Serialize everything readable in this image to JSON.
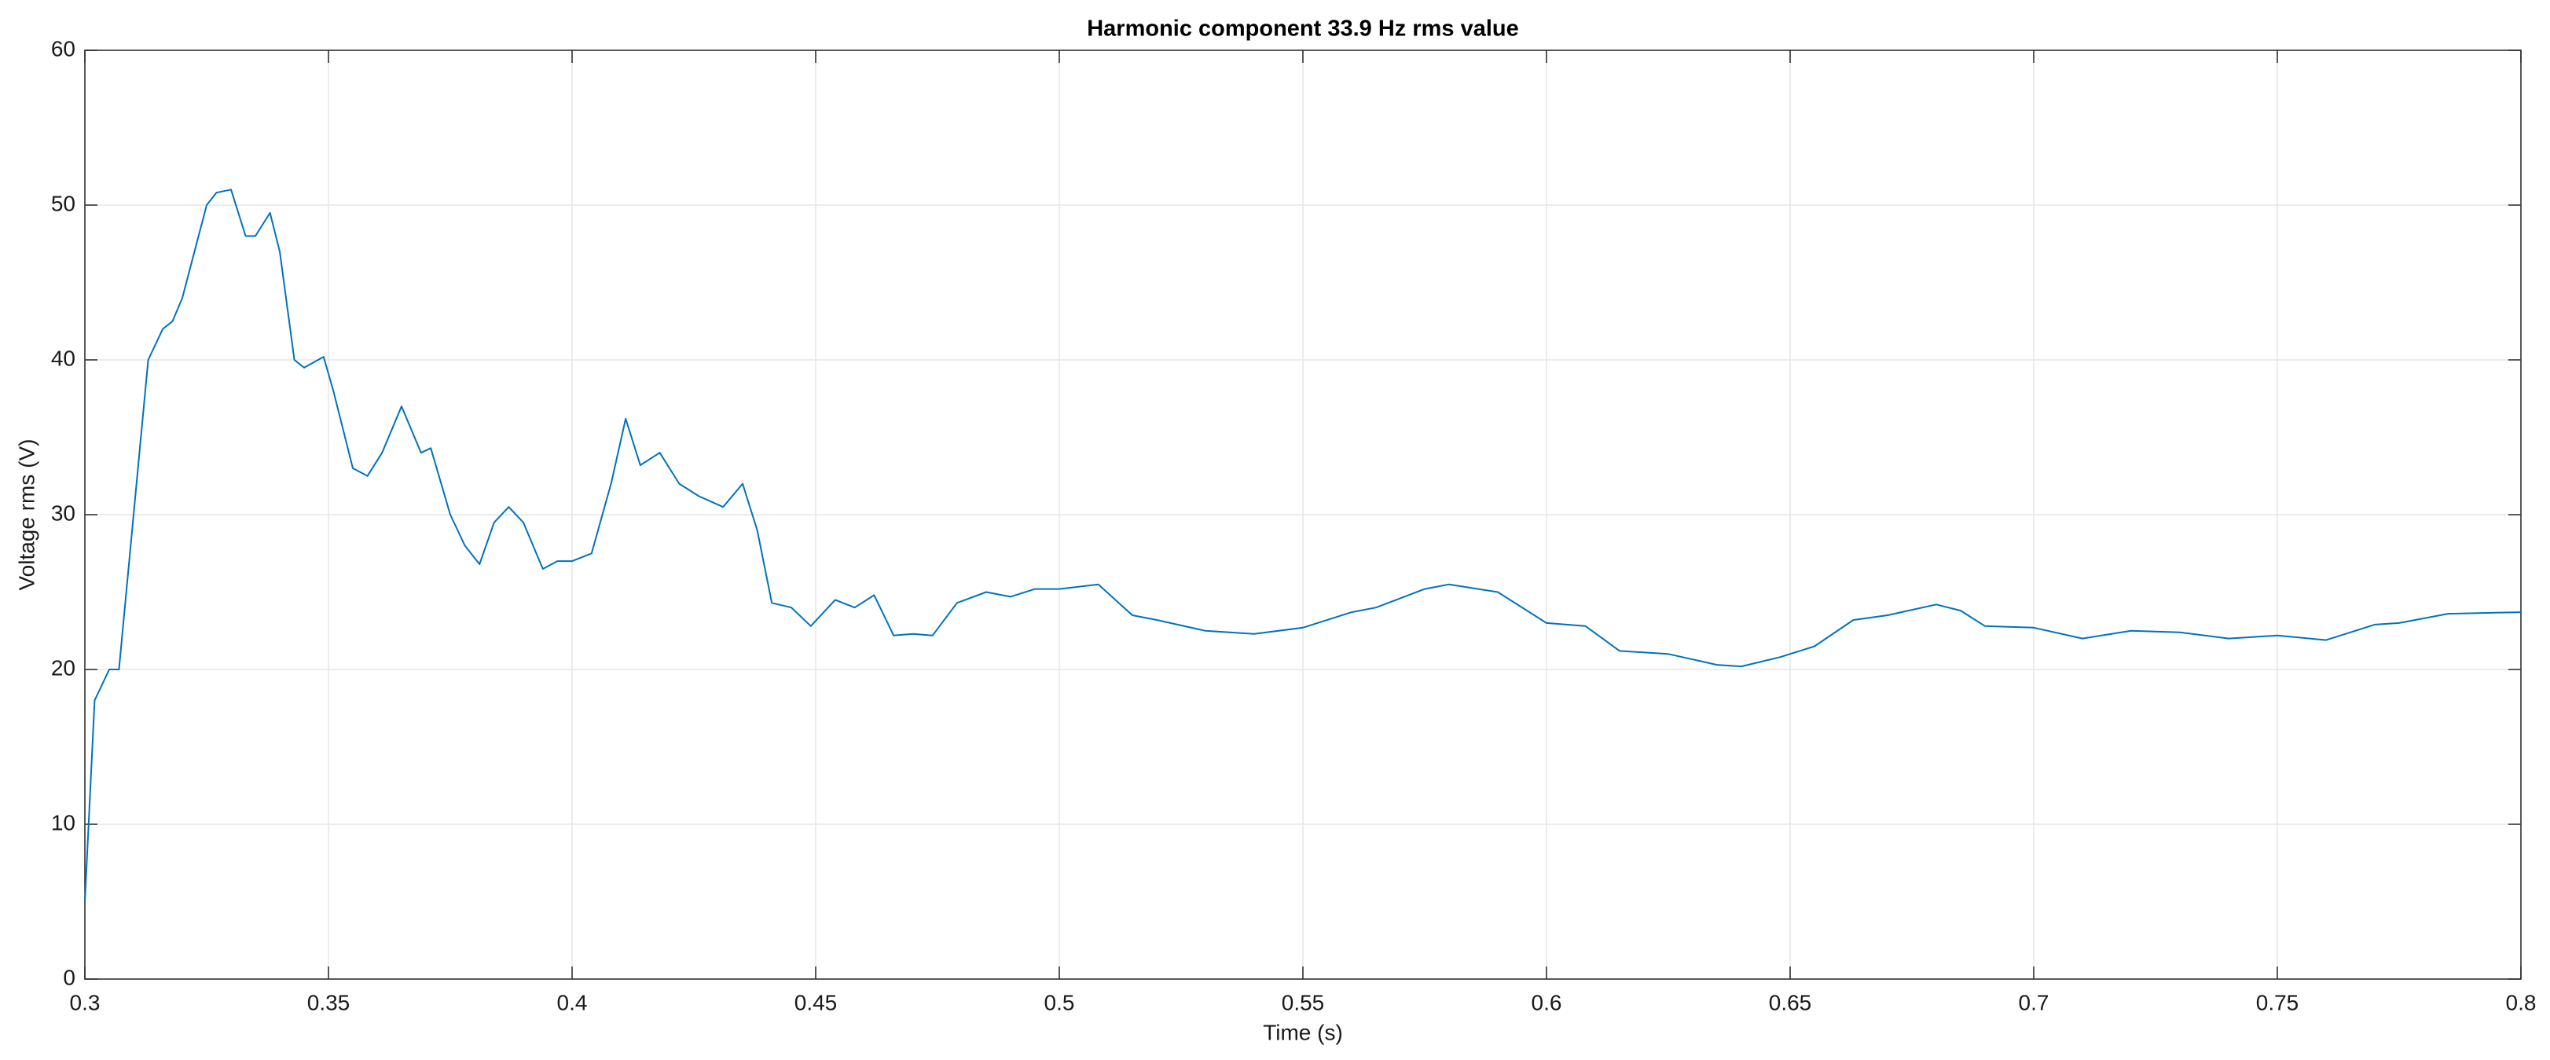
{
  "chart_data": {
    "type": "line",
    "title": "Harmonic component 33.9 Hz rms value",
    "xlabel": "Time (s)",
    "ylabel": "Voltage rms (V)",
    "x": [
      0.3,
      0.302,
      0.305,
      0.307,
      0.31,
      0.313,
      0.316,
      0.318,
      0.32,
      0.325,
      0.327,
      0.33,
      0.333,
      0.335,
      0.338,
      0.34,
      0.343,
      0.345,
      0.349,
      0.351,
      0.355,
      0.358,
      0.361,
      0.365,
      0.369,
      0.371,
      0.375,
      0.378,
      0.381,
      0.384,
      0.387,
      0.39,
      0.394,
      0.397,
      0.4,
      0.404,
      0.408,
      0.411,
      0.414,
      0.418,
      0.422,
      0.426,
      0.431,
      0.435,
      0.438,
      0.441,
      0.445,
      0.449,
      0.454,
      0.458,
      0.462,
      0.466,
      0.47,
      0.474,
      0.479,
      0.485,
      0.49,
      0.495,
      0.5,
      0.508,
      0.515,
      0.52,
      0.53,
      0.54,
      0.55,
      0.56,
      0.565,
      0.575,
      0.58,
      0.59,
      0.6,
      0.608,
      0.615,
      0.625,
      0.635,
      0.64,
      0.648,
      0.655,
      0.663,
      0.67,
      0.68,
      0.685,
      0.69,
      0.7,
      0.71,
      0.72,
      0.73,
      0.74,
      0.75,
      0.76,
      0.77,
      0.775,
      0.785,
      0.8
    ],
    "series": [
      {
        "name": "Voltage rms",
        "color": "#0072bd",
        "values": [
          5,
          18,
          20,
          20,
          30,
          40,
          42,
          42.5,
          44,
          50,
          50.8,
          51,
          48,
          48,
          49.5,
          47,
          40,
          39.5,
          40.2,
          38,
          33,
          32.5,
          34,
          37,
          34,
          34.3,
          30,
          28,
          26.8,
          29.5,
          30.5,
          29.5,
          26.5,
          27,
          27,
          27.5,
          32,
          36.2,
          33.2,
          34,
          32,
          31.2,
          30.5,
          32,
          29,
          24.3,
          24,
          22.8,
          24.5,
          24,
          24.8,
          22.2,
          22.3,
          22.2,
          24.3,
          25,
          24.7,
          25.2,
          25.2,
          25.5,
          23.5,
          23.2,
          22.5,
          22.3,
          22.7,
          23.7,
          24,
          25.2,
          25.5,
          25,
          23,
          22.8,
          21.2,
          21,
          20.3,
          20.2,
          20.8,
          21.5,
          23.2,
          23.5,
          24.2,
          23.8,
          22.8,
          22.7,
          22,
          22.5,
          22.4,
          22,
          22.2,
          21.9,
          22.9,
          23,
          23.6,
          23.7
        ]
      }
    ],
    "xlim": [
      0.3,
      0.8
    ],
    "xticks": [
      0.3,
      0.35,
      0.4,
      0.45,
      0.5,
      0.55,
      0.6,
      0.65,
      0.7,
      0.75,
      0.8
    ],
    "ylim": [
      0,
      60
    ],
    "yticks": [
      0,
      10,
      20,
      30,
      40,
      50,
      60
    ],
    "grid": true
  }
}
